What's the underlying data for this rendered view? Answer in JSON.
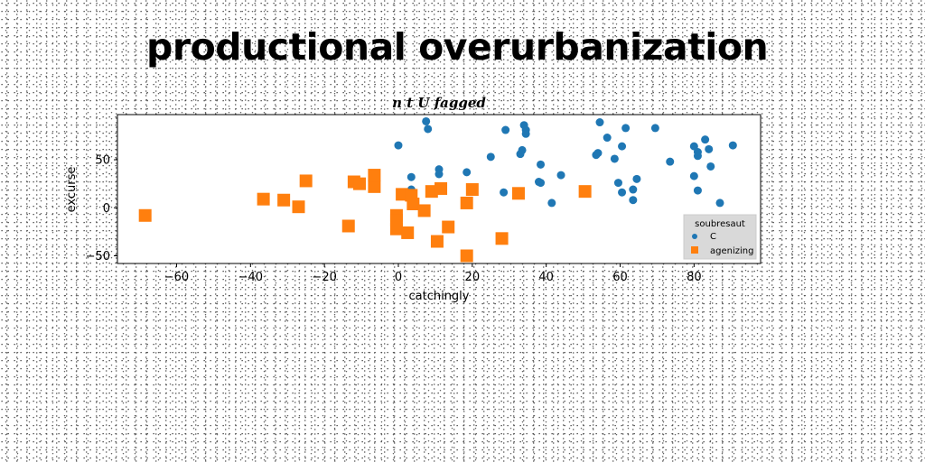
{
  "page": {
    "title": "productional overurbanization"
  },
  "chart_data": {
    "type": "scatter",
    "title": "n t U fagged",
    "xlabel": "catchingly",
    "ylabel": "excurse",
    "xlim": [
      -76,
      98
    ],
    "ylim": [
      -58,
      97
    ],
    "xticks": [
      -60,
      -40,
      -20,
      0,
      20,
      40,
      60,
      80
    ],
    "yticks": [
      -50,
      0,
      50
    ],
    "xtick_labels": [
      "−60",
      "−40",
      "−20",
      "0",
      "20",
      "40",
      "60",
      "80"
    ],
    "ytick_labels": [
      "−50",
      "0",
      "50"
    ],
    "grid": false,
    "legend": {
      "title": "soubresaut",
      "placement": "lower-right"
    },
    "series": [
      {
        "name": "C",
        "marker": "circle",
        "color": "#1f77b4",
        "points": [
          [
            0,
            65
          ],
          [
            3.5,
            32
          ],
          [
            3.5,
            19
          ],
          [
            7.5,
            90
          ],
          [
            8,
            82
          ],
          [
            11,
            40
          ],
          [
            11,
            35
          ],
          [
            18.5,
            37
          ],
          [
            25,
            53
          ],
          [
            28.5,
            16
          ],
          [
            29,
            81
          ],
          [
            33,
            56
          ],
          [
            33.5,
            60
          ],
          [
            34,
            86
          ],
          [
            34.5,
            81
          ],
          [
            34.5,
            77
          ],
          [
            38,
            27
          ],
          [
            38.5,
            26
          ],
          [
            38.5,
            45
          ],
          [
            41.5,
            5
          ],
          [
            44,
            34
          ],
          [
            53.5,
            55
          ],
          [
            54,
            57
          ],
          [
            54.5,
            89
          ],
          [
            56.5,
            73
          ],
          [
            58.5,
            51
          ],
          [
            59.5,
            26
          ],
          [
            60.5,
            64
          ],
          [
            60.5,
            16
          ],
          [
            61.5,
            83
          ],
          [
            63.5,
            19
          ],
          [
            63.5,
            8
          ],
          [
            64.5,
            30
          ],
          [
            69.5,
            83
          ],
          [
            73.5,
            48
          ],
          [
            80,
            64
          ],
          [
            80,
            33
          ],
          [
            81,
            54
          ],
          [
            81,
            58
          ],
          [
            81,
            18
          ],
          [
            83,
            71
          ],
          [
            84,
            61
          ],
          [
            84.5,
            43
          ],
          [
            87,
            5
          ],
          [
            90.5,
            65
          ]
        ]
      },
      {
        "name": "agenizing",
        "marker": "square",
        "color": "#ff7f0e",
        "points": [
          [
            -68.5,
            -8
          ],
          [
            -36.5,
            9
          ],
          [
            -31,
            8
          ],
          [
            -27,
            1
          ],
          [
            -25,
            28
          ],
          [
            -13.5,
            -19
          ],
          [
            -12,
            27
          ],
          [
            -10.5,
            25
          ],
          [
            -6.5,
            22
          ],
          [
            -6.5,
            34
          ],
          [
            -0.5,
            -8
          ],
          [
            -0.5,
            -13
          ],
          [
            -0.5,
            -22
          ],
          [
            1,
            14
          ],
          [
            2.5,
            -26
          ],
          [
            3.5,
            13
          ],
          [
            4,
            4
          ],
          [
            7,
            -3
          ],
          [
            9,
            17
          ],
          [
            10.5,
            -35
          ],
          [
            11.5,
            20
          ],
          [
            13.5,
            -20
          ],
          [
            18.5,
            -50
          ],
          [
            18.5,
            5
          ],
          [
            20,
            19
          ],
          [
            28,
            -32
          ],
          [
            32.5,
            15
          ],
          [
            50.5,
            17
          ]
        ]
      }
    ]
  }
}
